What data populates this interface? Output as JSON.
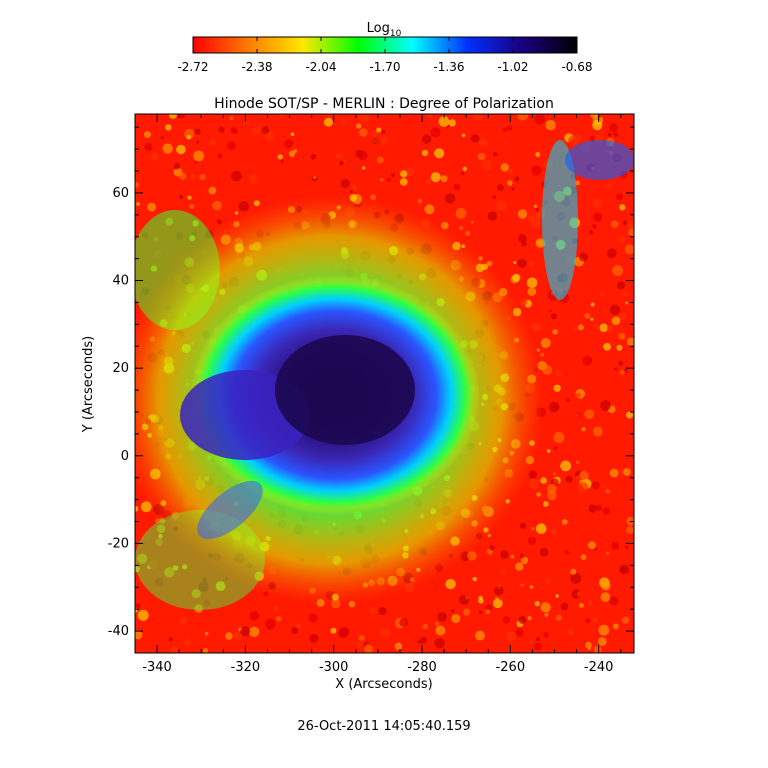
{
  "chart_data": {
    "type": "heatmap",
    "title": "Hinode SOT/SP - MERLIN : Degree of Polarization",
    "xlabel": "X (Arcseconds)",
    "ylabel": "Y (Arcseconds)",
    "xlim": [
      -345,
      -232
    ],
    "ylim": [
      -45,
      78
    ],
    "x_ticks": [
      -340,
      -320,
      -300,
      -280,
      -260,
      -240
    ],
    "y_ticks": [
      -40,
      -20,
      0,
      20,
      40,
      60
    ],
    "timestamp": "26-Oct-2011 14:05:40.159",
    "colorbar": {
      "label_base": "Log",
      "label_sub": "10",
      "range": [
        -2.72,
        -0.68
      ],
      "ticks": [
        "-2.72",
        "-2.38",
        "-2.04",
        "-1.70",
        "-1.36",
        "-1.02",
        "-0.68"
      ],
      "colormap": [
        "#ff0000",
        "#ff7a00",
        "#ffe800",
        "#00ff00",
        "#00ffff",
        "#0030ff",
        "#1a0080",
        "#000000"
      ]
    },
    "features": {
      "umbra_center": [
        -297,
        15
      ],
      "penumbra_radius": 28,
      "background_level": -2.6,
      "umbra_level": -0.75
    }
  }
}
